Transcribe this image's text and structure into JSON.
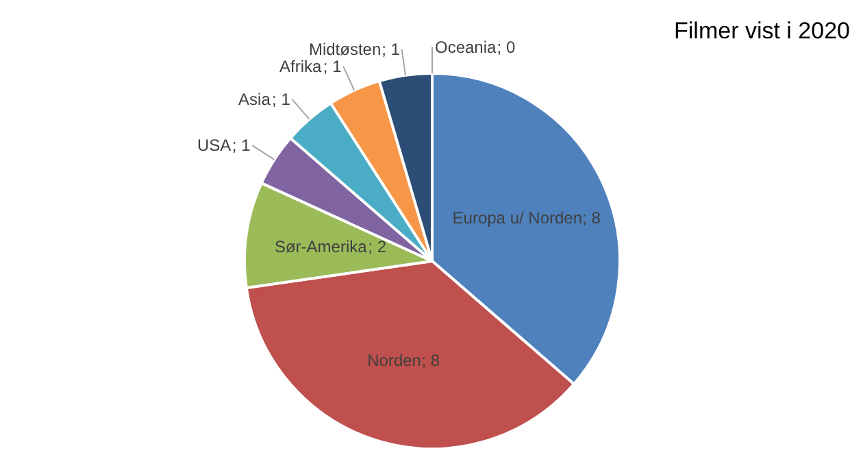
{
  "chart_data": {
    "type": "pie",
    "title": "Filmer vist i 2020",
    "categories": [
      "Europa u/ Norden",
      "Norden",
      "Sør-Amerika",
      "USA",
      "Asia",
      "Afrika",
      "Midtøsten",
      "Oceania"
    ],
    "values": [
      8,
      8,
      2,
      1,
      1,
      1,
      1,
      0
    ],
    "colors": [
      "#4f81bd",
      "#c0504d",
      "#9bbb59",
      "#8064a2",
      "#4bacc6",
      "#f79646",
      "#2c4d75",
      "#772c2a"
    ],
    "value_labels": [
      "; 8",
      "; 8",
      "; 2",
      "; 1",
      "; 1",
      "; 1",
      "; 1",
      "; 0"
    ]
  }
}
